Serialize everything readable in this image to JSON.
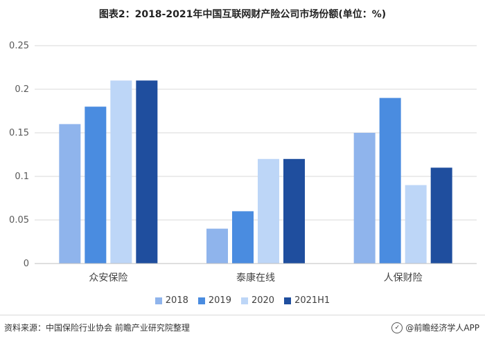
{
  "title": "图表2：2018-2021年中国互联网财产险公司市场份额(单位：%)",
  "footer": {
    "source": "资料来源：中国保险行业协会 前瞻产业研究院整理",
    "brand": "@前瞻经济学人APP",
    "brand_icon": "prospective-logo-icon"
  },
  "chart_data": {
    "type": "bar",
    "title": "图表2：2018-2021年中国互联网财产险公司市场份额(单位：%)",
    "categories": [
      "众安保险",
      "泰康在线",
      "人保财险"
    ],
    "series": [
      {
        "name": "2018",
        "values": [
          0.16,
          0.04,
          0.15
        ],
        "color": "#8FB4EC"
      },
      {
        "name": "2019",
        "values": [
          0.18,
          0.06,
          0.19
        ],
        "color": "#4A8CE0"
      },
      {
        "name": "2020",
        "values": [
          0.21,
          0.12,
          0.09
        ],
        "color": "#BDD6F7"
      },
      {
        "name": "2021H1",
        "values": [
          0.21,
          0.12,
          0.11
        ],
        "color": "#1F4E9E"
      }
    ],
    "yticks": [
      "0",
      "0.05",
      "0.1",
      "0.15",
      "0.2",
      "0.25"
    ],
    "ylim": [
      0,
      0.25
    ],
    "grid": true,
    "legend": "bottom"
  }
}
